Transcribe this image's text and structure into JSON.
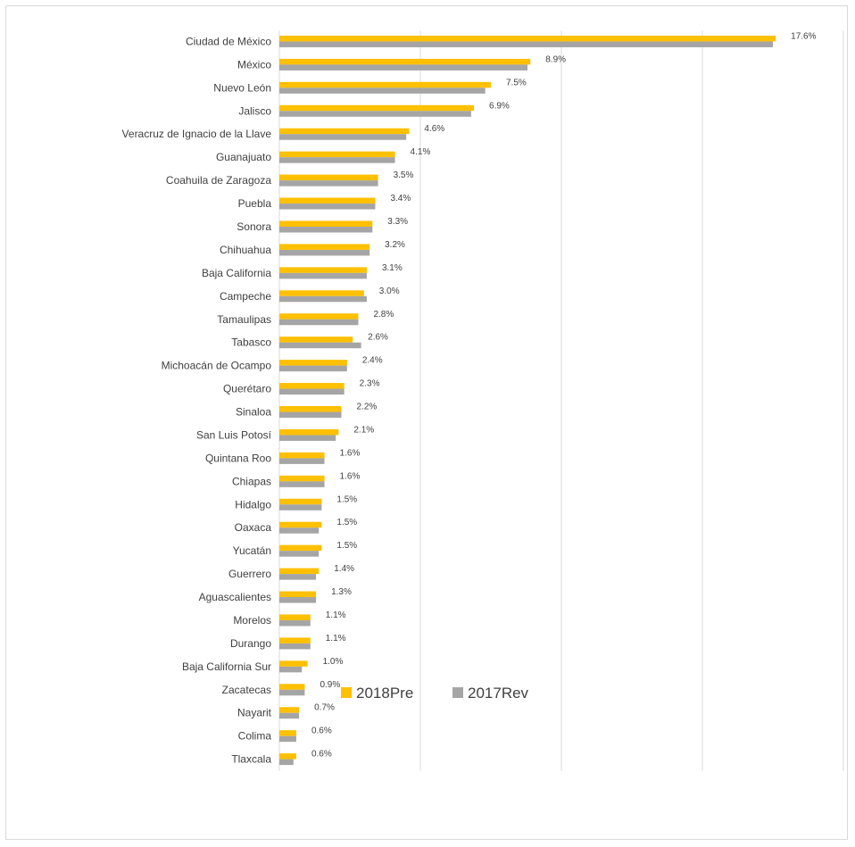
{
  "chart_data": {
    "type": "bar",
    "orientation": "horizontal",
    "title": "",
    "xlabel": "",
    "ylabel": "",
    "xlim": [
      0,
      20
    ],
    "grid": true,
    "legend_position": "bottom",
    "categories": [
      "Ciudad de México",
      "México",
      "Nuevo León",
      "Jalisco",
      "Veracruz de Ignacio de la Llave",
      "Guanajuato",
      "Coahuila de Zaragoza",
      "Puebla",
      "Sonora",
      "Chihuahua",
      "Baja California",
      "Campeche",
      "Tamaulipas",
      "Tabasco",
      "Michoacán de Ocampo",
      "Querétaro",
      "Sinaloa",
      "San Luis Potosí",
      "Quintana Roo",
      "Chiapas",
      "Hidalgo",
      "Oaxaca",
      "Yucatán",
      "Guerrero",
      "Aguascalientes",
      "Morelos",
      "Durango",
      "Baja California Sur",
      "Zacatecas",
      "Nayarit",
      "Colima",
      "Tlaxcala"
    ],
    "series": [
      {
        "name": "2018Pre",
        "color": "#ffc000",
        "values": [
          17.6,
          8.9,
          7.5,
          6.9,
          4.6,
          4.1,
          3.5,
          3.4,
          3.3,
          3.2,
          3.1,
          3.0,
          2.8,
          2.6,
          2.4,
          2.3,
          2.2,
          2.1,
          1.6,
          1.6,
          1.5,
          1.5,
          1.5,
          1.4,
          1.3,
          1.1,
          1.1,
          1.0,
          0.9,
          0.7,
          0.6,
          0.6
        ]
      },
      {
        "name": "2017Rev",
        "color": "#a5a5a5",
        "values": [
          17.5,
          8.8,
          7.3,
          6.8,
          4.5,
          4.1,
          3.5,
          3.4,
          3.3,
          3.2,
          3.1,
          3.1,
          2.8,
          2.9,
          2.4,
          2.3,
          2.2,
          2.0,
          1.6,
          1.6,
          1.5,
          1.4,
          1.4,
          1.3,
          1.3,
          1.1,
          1.1,
          0.8,
          0.9,
          0.7,
          0.6,
          0.5
        ]
      }
    ],
    "data_labels": [
      "17.6%",
      "8.9%",
      "7.5%",
      "6.9%",
      "4.6%",
      "4.1%",
      "3.5%",
      "3.4%",
      "3.3%",
      "3.2%",
      "3.1%",
      "3.0%",
      "2.8%",
      "2.6%",
      "2.4%",
      "2.3%",
      "2.2%",
      "2.1%",
      "1.6%",
      "1.6%",
      "1.5%",
      "1.5%",
      "1.5%",
      "1.4%",
      "1.3%",
      "1.1%",
      "1.1%",
      "1.0%",
      "0.9%",
      "0.7%",
      "0.6%",
      "0.6%"
    ]
  }
}
